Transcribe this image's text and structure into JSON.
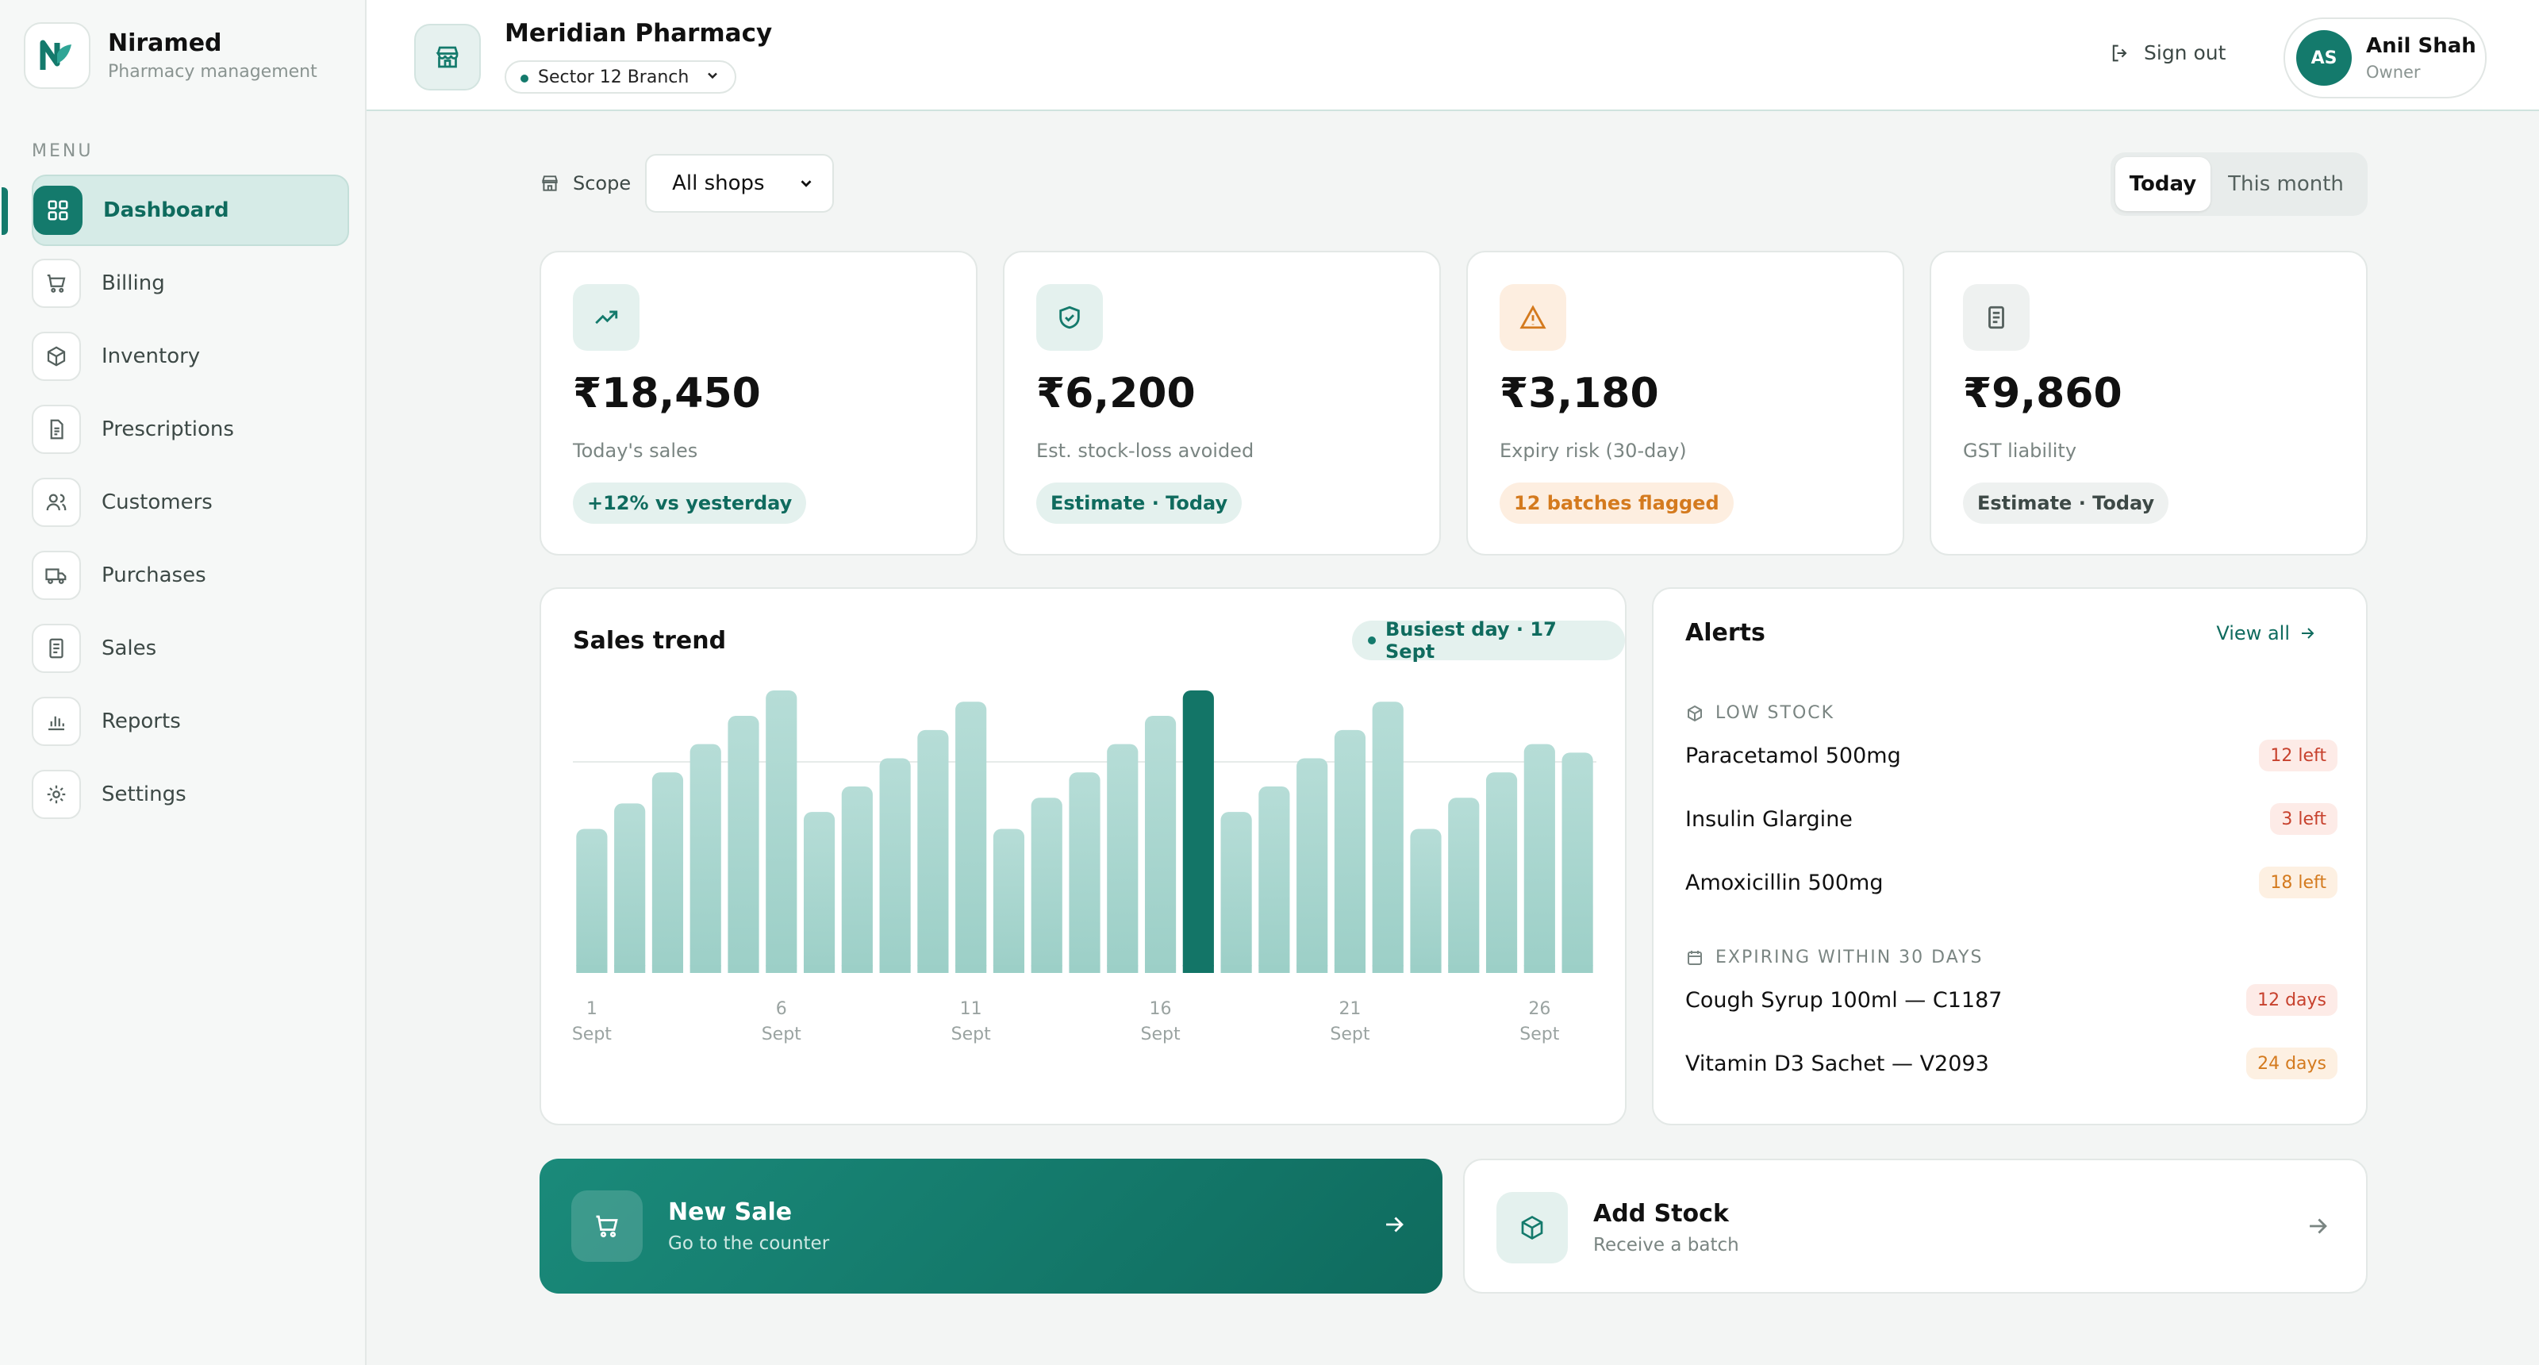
{
  "brand": {
    "name": "Niramed",
    "subtitle": "Pharmacy management"
  },
  "sidebar": {
    "menu_label": "MENU",
    "items": [
      {
        "label": "Dashboard",
        "icon": "grid-icon",
        "active": true
      },
      {
        "label": "Billing",
        "icon": "cart-icon"
      },
      {
        "label": "Inventory",
        "icon": "box-icon"
      },
      {
        "label": "Prescriptions",
        "icon": "document-icon"
      },
      {
        "label": "Customers",
        "icon": "users-icon"
      },
      {
        "label": "Purchases",
        "icon": "truck-icon"
      },
      {
        "label": "Sales",
        "icon": "receipt-icon"
      },
      {
        "label": "Reports",
        "icon": "bar-chart-icon"
      },
      {
        "label": "Settings",
        "icon": "gear-icon"
      }
    ]
  },
  "header": {
    "store_name": "Meridian Pharmacy",
    "branch": "Sector 12 Branch",
    "sign_out": "Sign out",
    "user": {
      "initials": "AS",
      "name": "Anil Shah",
      "role": "Owner"
    }
  },
  "scope": {
    "label": "Scope",
    "value": "All shops"
  },
  "period": {
    "today": "Today",
    "month": "This month",
    "selected": "Today"
  },
  "kpis": [
    {
      "value": "₹18,450",
      "label": "Today's sales",
      "pill": "+12% vs yesterday",
      "icon": "trending-up-icon",
      "tone": "green"
    },
    {
      "value": "₹6,200",
      "label": "Est. stock-loss avoided",
      "pill": "Estimate · Today",
      "icon": "shield-check-icon",
      "tone": "green"
    },
    {
      "value": "₹3,180",
      "label": "Expiry risk (30-day)",
      "pill": "12 batches flagged",
      "icon": "warning-icon",
      "tone": "orange"
    },
    {
      "value": "₹9,860",
      "label": "GST liability",
      "pill": "Estimate · Today",
      "icon": "receipt-icon",
      "tone": "grey"
    }
  ],
  "trend": {
    "title": "Sales trend",
    "busiest": "Busiest day · 17 Sept"
  },
  "chart_data": {
    "type": "bar",
    "title": "Sales trend",
    "categories": [
      "1",
      "2",
      "3",
      "4",
      "5",
      "6",
      "7",
      "8",
      "9",
      "10",
      "11",
      "12",
      "13",
      "14",
      "15",
      "16",
      "17",
      "18",
      "19",
      "20",
      "21",
      "22",
      "23",
      "24",
      "25",
      "26",
      "27"
    ],
    "values": [
      51,
      60,
      71,
      81,
      91,
      100,
      57,
      66,
      76,
      86,
      96,
      51,
      62,
      71,
      81,
      91,
      100,
      57,
      66,
      76,
      86,
      96,
      51,
      62,
      71,
      81,
      78
    ],
    "highlight_index": 16,
    "tick_labels": [
      {
        "index": 0,
        "day": "1",
        "month": "Sept"
      },
      {
        "index": 5,
        "day": "6",
        "month": "Sept"
      },
      {
        "index": 10,
        "day": "11",
        "month": "Sept"
      },
      {
        "index": 15,
        "day": "16",
        "month": "Sept"
      },
      {
        "index": 20,
        "day": "21",
        "month": "Sept"
      },
      {
        "index": 25,
        "day": "26",
        "month": "Sept"
      }
    ],
    "ylim": [
      0,
      100
    ],
    "grid": true,
    "colors": {
      "bar": "#a6d5ce",
      "highlight": "#137567"
    }
  },
  "alerts": {
    "title": "Alerts",
    "view_all": "View all",
    "low_stock_label": "LOW STOCK",
    "low_stock": [
      {
        "name": "Paracetamol 500mg",
        "badge": "12 left",
        "tone": "red"
      },
      {
        "name": "Insulin Glargine",
        "badge": "3 left",
        "tone": "red"
      },
      {
        "name": "Amoxicillin 500mg",
        "badge": "18 left",
        "tone": "orange"
      }
    ],
    "expiring_label": "EXPIRING WITHIN 30 DAYS",
    "expiring": [
      {
        "name": "Cough Syrup 100ml — C1187",
        "badge": "12 days",
        "tone": "red"
      },
      {
        "name": "Vitamin D3 Sachet — V2093",
        "badge": "24 days",
        "tone": "orange"
      }
    ]
  },
  "actions": {
    "new_sale": {
      "title": "New Sale",
      "subtitle": "Go to the counter"
    },
    "add_stock": {
      "title": "Add Stock",
      "subtitle": "Receive a batch"
    }
  },
  "colors": {
    "accent": "#147a6c",
    "accent_light": "#e4f1ee",
    "danger": "#c7412d",
    "warning": "#d47a1e"
  }
}
